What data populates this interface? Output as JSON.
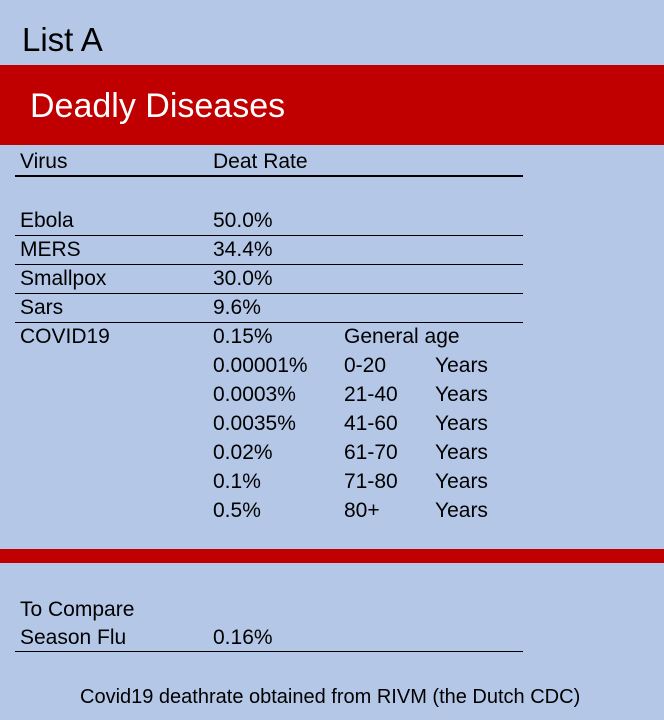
{
  "title": "List A",
  "banner": "Deadly Diseases",
  "table": {
    "header": [
      "Virus",
      "Deat Rate"
    ],
    "rows": [
      [
        "Ebola",
        "50.0%"
      ],
      [
        "MERS",
        "34.4%"
      ],
      [
        "Smallpox",
        "30.0%"
      ],
      [
        "Sars",
        "9.6%"
      ],
      [
        "COVID19",
        "0.15%",
        "General age"
      ]
    ]
  },
  "covid_breakdown": [
    [
      "0.00001%",
      "0-20",
      "Years"
    ],
    [
      "0.0003%",
      "21-40",
      "Years"
    ],
    [
      "0.0035%",
      "41-60",
      "Years"
    ],
    [
      "0.02%",
      "61-70",
      "Years"
    ],
    [
      "0.1%",
      "71-80",
      "Years"
    ],
    [
      "0.5%",
      "80+",
      "Years"
    ]
  ],
  "comparison": {
    "heading": "To Compare",
    "name": "Season Flu",
    "rate": "0.16%"
  },
  "footnote": "Covid19 deathrate obtained from RIVM (the Dutch CDC)"
}
